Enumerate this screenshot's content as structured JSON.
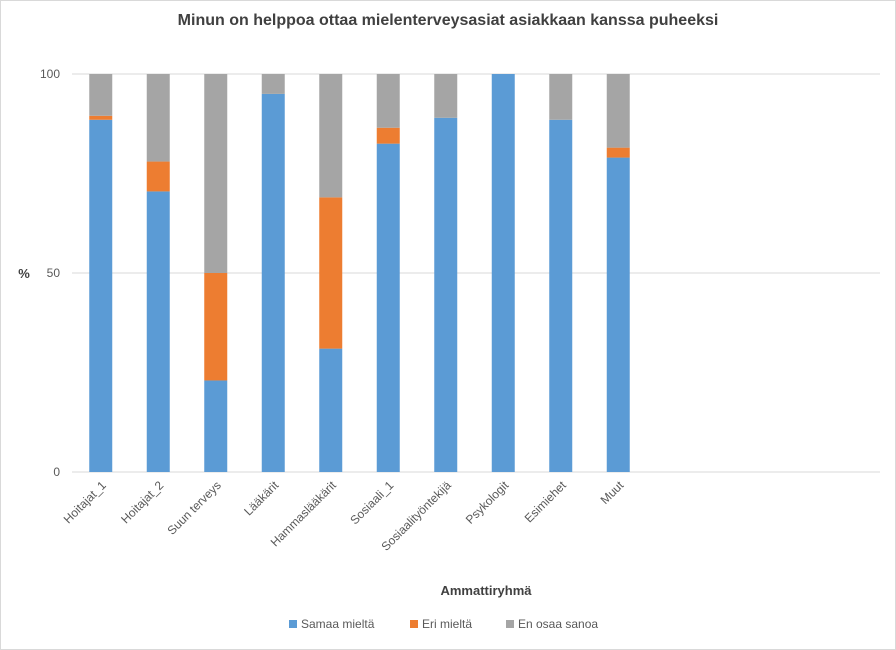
{
  "chart_data": {
    "type": "bar",
    "stacked": true,
    "title": "Minun on helppoa ottaa mielenterveysasiat asiakkaan kanssa puheeksi",
    "xlabel": "Ammattiryhmä",
    "ylabel": "%",
    "ylim": [
      0,
      100
    ],
    "yticks": [
      0,
      50,
      100
    ],
    "grid": true,
    "legend_position": "bottom",
    "categories": [
      "Hoitajat_1",
      "Hoitajat_2",
      "Suun terveys",
      "Lääkärit",
      "Hammaslääkärit",
      "Sosiaali_1",
      "Sosiaalityöntekijä",
      "Psykologit",
      "Esimiehet",
      "Muut"
    ],
    "series": [
      {
        "name": "Samaa mieltä",
        "color": "#5b9bd5",
        "values": [
          88.5,
          70.5,
          23,
          95,
          31,
          82.5,
          89,
          100,
          88.5,
          79
        ]
      },
      {
        "name": "Eri mieltä",
        "color": "#ed7d31",
        "values": [
          1,
          7.5,
          27,
          0,
          38,
          4,
          0,
          0,
          0,
          2.5
        ]
      },
      {
        "name": "En osaa sanoa",
        "color": "#a5a5a5",
        "values": [
          10.5,
          22,
          50,
          5,
          31,
          13.5,
          11,
          0,
          11.5,
          18.5
        ]
      }
    ]
  }
}
